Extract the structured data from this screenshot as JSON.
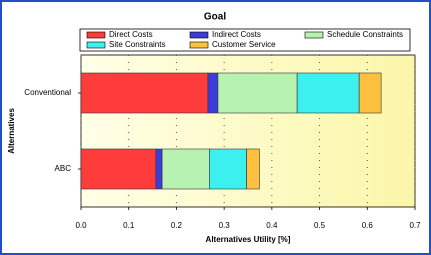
{
  "chart_data": {
    "type": "stacked-barh",
    "title": "Goal",
    "categories": [
      "Conventional",
      "ABC"
    ],
    "series": [
      {
        "name": "Direct Costs",
        "color": "#ff3c3c",
        "values": [
          0.266,
          0.157
        ]
      },
      {
        "name": "Indirect Costs",
        "color": "#3c3cd8",
        "values": [
          0.021,
          0.013
        ]
      },
      {
        "name": "Schedule Constraints",
        "color": "#b8f2b0",
        "values": [
          0.166,
          0.099
        ]
      },
      {
        "name": "Site Constraints",
        "color": "#3cf0f0",
        "values": [
          0.13,
          0.078
        ]
      },
      {
        "name": "Customer Service",
        "color": "#ffc040",
        "values": [
          0.046,
          0.027
        ]
      }
    ],
    "xlabel": "Alternatives Utility [%]",
    "ylabel": "Alternatives",
    "xlim": [
      0,
      0.7
    ],
    "xticks": [
      {
        "value": 0,
        "label": "0.0"
      },
      0.1,
      0.2,
      0.3,
      0.4,
      0.5,
      0.6,
      0.7
    ],
    "grid": true
  }
}
